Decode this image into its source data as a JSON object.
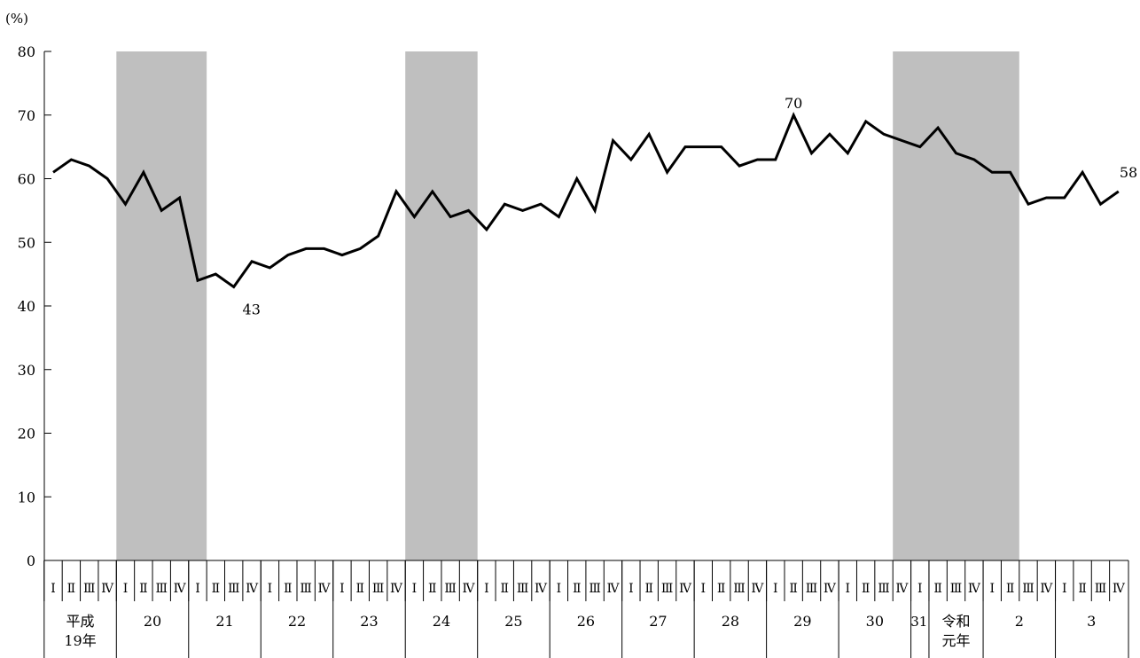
{
  "chart_data": {
    "type": "line",
    "y_unit_label": "(%)",
    "ylim": [
      0,
      80
    ],
    "y_ticks": [
      "0",
      "10",
      "20",
      "30",
      "40",
      "50",
      "60",
      "70",
      "80"
    ],
    "quarter_labels": [
      "Ⅰ",
      "Ⅱ",
      "Ⅲ",
      "Ⅳ"
    ],
    "quarters_per_group": [
      4,
      4,
      4,
      4,
      4,
      4,
      4,
      4,
      4,
      4,
      4,
      4,
      1,
      3,
      4,
      4
    ],
    "year_labels": [
      [
        "平成",
        "19年"
      ],
      [
        "20"
      ],
      [
        "21"
      ],
      [
        "22"
      ],
      [
        "23"
      ],
      [
        "24"
      ],
      [
        "25"
      ],
      [
        "26"
      ],
      [
        "27"
      ],
      [
        "28"
      ],
      [
        "29"
      ],
      [
        "30"
      ],
      [
        "31"
      ],
      [
        "令和",
        "元年"
      ],
      [
        "2"
      ],
      [
        "3"
      ]
    ],
    "shaded_periods": [
      {
        "start": 3.5,
        "end": 8.5
      },
      {
        "start": 19.5,
        "end": 23.5
      },
      {
        "start": 46.5,
        "end": 53.5
      }
    ],
    "series": [
      {
        "color": "#000000",
        "values": [
          61,
          63,
          62,
          60,
          56,
          61,
          55,
          57,
          44,
          45,
          43,
          47,
          46,
          48,
          49,
          49,
          48,
          49,
          51,
          58,
          54,
          58,
          54,
          55,
          52,
          56,
          55,
          56,
          54,
          60,
          55,
          66,
          63,
          67,
          61,
          65,
          65,
          65,
          62,
          63,
          63,
          70,
          64,
          67,
          64,
          69,
          67,
          66,
          65,
          68,
          64,
          63,
          61,
          61,
          56,
          57,
          57,
          61,
          56,
          58
        ]
      }
    ],
    "data_labels": [
      {
        "index": 10,
        "text": "43",
        "position": "below"
      },
      {
        "index": 41,
        "text": "70",
        "position": "above"
      },
      {
        "index": 59,
        "text": "58",
        "position": "above-right"
      }
    ],
    "shade_color": "#bfbfbf",
    "grid": false,
    "legend": "none"
  }
}
